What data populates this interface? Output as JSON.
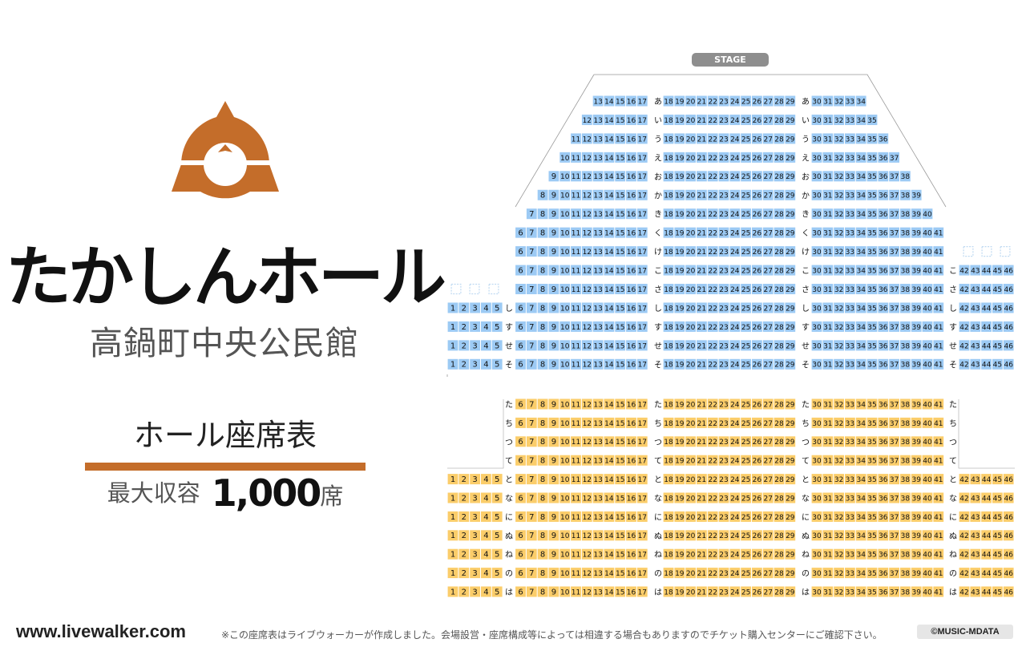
{
  "venue": {
    "name": "たかしんホール",
    "subname": "高鍋町中央公民館",
    "seat_chart_label": "ホール座席表",
    "capacity_label": "最大収容",
    "capacity_value": "1,000",
    "capacity_unit": "席"
  },
  "stage_label": "STAGE",
  "footer": {
    "site": "www.livewalker.com",
    "note": "※この座席表はライブウォーカーが作成しました。会場設営・座席構成等によっては相違する場合もありますのでチケット購入センターにご確認下さい。",
    "copyright": "©MUSIC-MDATA"
  },
  "colors": {
    "accent": "#c46d2a",
    "upper_seat": "#9ccaf4",
    "lower_seat": "#fbcd6a",
    "empty_seat": "#bfdaf2"
  },
  "upper_rows": [
    {
      "label": "あ",
      "left": [
        13,
        17
      ],
      "center": [
        18,
        29
      ],
      "right": [
        30,
        34
      ]
    },
    {
      "label": "い",
      "left": [
        12,
        17
      ],
      "center": [
        18,
        29
      ],
      "right": [
        30,
        35
      ]
    },
    {
      "label": "う",
      "left": [
        11,
        17
      ],
      "center": [
        18,
        29
      ],
      "right": [
        30,
        36
      ]
    },
    {
      "label": "え",
      "left": [
        10,
        17
      ],
      "center": [
        18,
        29
      ],
      "right": [
        30,
        37
      ]
    },
    {
      "label": "お",
      "left": [
        9,
        17
      ],
      "center": [
        18,
        29
      ],
      "right": [
        30,
        38
      ]
    },
    {
      "label": "か",
      "left": [
        8,
        17
      ],
      "center": [
        18,
        29
      ],
      "right": [
        30,
        39
      ]
    },
    {
      "label": "き",
      "left": [
        7,
        17
      ],
      "center": [
        18,
        29
      ],
      "right": [
        30,
        40
      ]
    },
    {
      "label": "く",
      "left": [
        6,
        17
      ],
      "center": [
        18,
        29
      ],
      "right": [
        30,
        41
      ]
    },
    {
      "label": "け",
      "left": [
        6,
        17
      ],
      "center": [
        18,
        29
      ],
      "right": [
        30,
        41
      ]
    },
    {
      "label": "こ",
      "left": [
        6,
        17
      ],
      "center": [
        18,
        29
      ],
      "right": [
        30,
        41
      ],
      "far_right": [
        42,
        46
      ]
    },
    {
      "label": "さ",
      "left": [
        6,
        17
      ],
      "center": [
        18,
        29
      ],
      "right": [
        30,
        41
      ],
      "far_right": [
        42,
        46
      ]
    },
    {
      "label": "し",
      "far_left": [
        1,
        5
      ],
      "left": [
        6,
        17
      ],
      "center": [
        18,
        29
      ],
      "right": [
        30,
        41
      ],
      "far_right": [
        42,
        46
      ]
    },
    {
      "label": "す",
      "far_left": [
        1,
        5
      ],
      "left": [
        6,
        17
      ],
      "center": [
        18,
        29
      ],
      "right": [
        30,
        41
      ],
      "far_right": [
        42,
        46
      ]
    },
    {
      "label": "せ",
      "far_left": [
        1,
        5
      ],
      "left": [
        6,
        17
      ],
      "center": [
        18,
        29
      ],
      "right": [
        30,
        41
      ],
      "far_right": [
        42,
        46
      ]
    },
    {
      "label": "そ",
      "far_left": [
        1,
        5
      ],
      "left": [
        6,
        17
      ],
      "center": [
        18,
        29
      ],
      "right": [
        30,
        41
      ],
      "far_right": [
        42,
        46
      ]
    }
  ],
  "lower_rows": [
    {
      "label": "た",
      "left": [
        6,
        17
      ],
      "center": [
        18,
        29
      ],
      "right": [
        30,
        41
      ]
    },
    {
      "label": "ち",
      "left": [
        6,
        17
      ],
      "center": [
        18,
        29
      ],
      "right": [
        30,
        41
      ]
    },
    {
      "label": "つ",
      "left": [
        6,
        17
      ],
      "center": [
        18,
        29
      ],
      "right": [
        30,
        41
      ]
    },
    {
      "label": "て",
      "left": [
        6,
        17
      ],
      "center": [
        18,
        29
      ],
      "right": [
        30,
        41
      ]
    },
    {
      "label": "と",
      "far_left": [
        1,
        5
      ],
      "left": [
        6,
        17
      ],
      "center": [
        18,
        29
      ],
      "right": [
        30,
        41
      ],
      "far_right": [
        42,
        46
      ]
    },
    {
      "label": "な",
      "far_left": [
        1,
        5
      ],
      "left": [
        6,
        17
      ],
      "center": [
        18,
        29
      ],
      "right": [
        30,
        41
      ],
      "far_right": [
        42,
        46
      ]
    },
    {
      "label": "に",
      "far_left": [
        1,
        5
      ],
      "left": [
        6,
        17
      ],
      "center": [
        18,
        29
      ],
      "right": [
        30,
        41
      ],
      "far_right": [
        42,
        46
      ]
    },
    {
      "label": "ぬ",
      "far_left": [
        1,
        5
      ],
      "left": [
        6,
        17
      ],
      "center": [
        18,
        29
      ],
      "right": [
        30,
        41
      ],
      "far_right": [
        42,
        46
      ]
    },
    {
      "label": "ね",
      "far_left": [
        1,
        5
      ],
      "left": [
        6,
        17
      ],
      "center": [
        18,
        29
      ],
      "right": [
        30,
        41
      ],
      "far_right": [
        42,
        46
      ]
    },
    {
      "label": "の",
      "far_left": [
        1,
        5
      ],
      "left": [
        6,
        17
      ],
      "center": [
        18,
        29
      ],
      "right": [
        30,
        41
      ],
      "far_right": [
        42,
        46
      ]
    },
    {
      "label": "は",
      "far_left": [
        1,
        5
      ],
      "left": [
        6,
        17
      ],
      "center": [
        18,
        29
      ],
      "right": [
        30,
        41
      ],
      "far_right": [
        42,
        46
      ]
    }
  ]
}
